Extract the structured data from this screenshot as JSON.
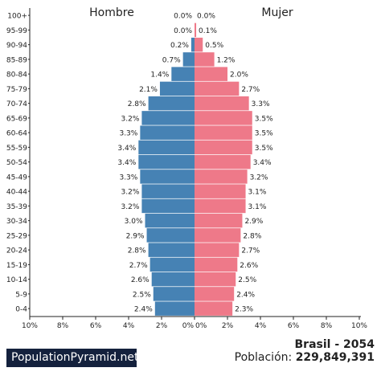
{
  "chart_data": {
    "type": "bar",
    "orientation": "horizontal-pyramid",
    "categories": [
      "100+",
      "95-99",
      "90-94",
      "85-89",
      "80-84",
      "75-79",
      "70-74",
      "65-69",
      "60-64",
      "55-59",
      "50-54",
      "45-49",
      "40-44",
      "35-39",
      "30-34",
      "25-29",
      "20-24",
      "15-19",
      "10-14",
      "5-9",
      "0-4"
    ],
    "series": [
      {
        "name": "Hombre",
        "color": "#4682b4",
        "values": [
          0.0,
          0.0,
          0.2,
          0.7,
          1.4,
          2.1,
          2.8,
          3.2,
          3.3,
          3.4,
          3.4,
          3.3,
          3.2,
          3.2,
          3.0,
          2.9,
          2.8,
          2.7,
          2.6,
          2.5,
          2.4
        ],
        "labels": [
          "0.0%",
          "0.0%",
          "0.2%",
          "0.7%",
          "1.4%",
          "2.1%",
          "2.8%",
          "3.2%",
          "3.3%",
          "3.4%",
          "3.4%",
          "3.3%",
          "3.2%",
          "3.2%",
          "3.0%",
          "2.9%",
          "2.8%",
          "2.7%",
          "2.6%",
          "2.5%",
          "2.4%"
        ]
      },
      {
        "name": "Mujer",
        "color": "#ee7989",
        "values": [
          0.0,
          0.1,
          0.5,
          1.2,
          2.0,
          2.7,
          3.3,
          3.5,
          3.5,
          3.5,
          3.4,
          3.2,
          3.1,
          3.1,
          2.9,
          2.8,
          2.7,
          2.6,
          2.5,
          2.4,
          2.3
        ],
        "labels": [
          "0.0%",
          "0.1%",
          "0.5%",
          "1.2%",
          "2.0%",
          "2.7%",
          "3.3%",
          "3.5%",
          "3.5%",
          "3.5%",
          "3.4%",
          "3.2%",
          "3.1%",
          "3.1%",
          "2.9%",
          "2.8%",
          "2.7%",
          "2.6%",
          "2.5%",
          "2.4%",
          "2.3%"
        ]
      }
    ],
    "xlim": [
      0,
      10
    ],
    "xticks_left": [
      "10%",
      "8%",
      "6%",
      "4%",
      "2%",
      "0%"
    ],
    "xticks_right": [
      "0%",
      "2%",
      "4%",
      "6%",
      "8%",
      "10%"
    ],
    "grid": false
  },
  "site": {
    "name": "PopulationPyramid.net"
  },
  "footer": {
    "country_year": "Brasil - 2054",
    "population_label": "Población:",
    "population_value": "229,849,391"
  }
}
